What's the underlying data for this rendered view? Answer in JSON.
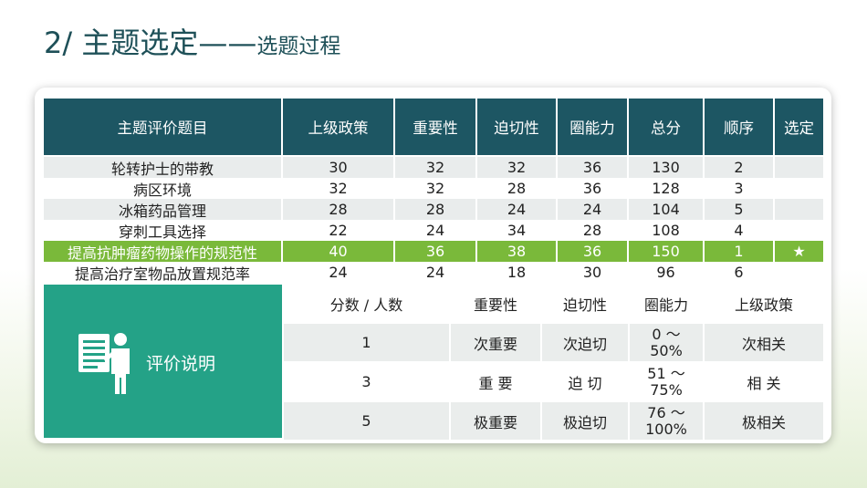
{
  "title": {
    "main": "2/ 主题选定——",
    "sub": "选题过程"
  },
  "score_table": {
    "headers": [
      "主题评价题目",
      "上级政策",
      "重要性",
      "迫切性",
      "圈能力",
      "总分",
      "顺序",
      "选定"
    ],
    "rows": [
      [
        "轮转护士的带教",
        "30",
        "32",
        "32",
        "36",
        "130",
        "2",
        ""
      ],
      [
        "病区环境",
        "32",
        "32",
        "28",
        "36",
        "128",
        "3",
        ""
      ],
      [
        "冰箱药品管理",
        "28",
        "28",
        "24",
        "24",
        "104",
        "5",
        ""
      ],
      [
        "穿刺工具选择",
        "22",
        "24",
        "34",
        "28",
        "108",
        "4",
        ""
      ],
      [
        "提高抗肿瘤药物操作的规范性",
        "40",
        "36",
        "38",
        "36",
        "150",
        "1",
        "★"
      ],
      [
        "提高治疗室物品放置规范率",
        "24",
        "24",
        "18",
        "30",
        "96",
        "6",
        ""
      ]
    ],
    "highlight_color": "#7ab93a",
    "header_color": "#1d5663"
  },
  "criteria": {
    "label": "评价说明",
    "panel_color": "#24a287",
    "panel_icon": "document-presenter-icon",
    "headers": [
      "分数 / 人数",
      "重要性",
      "迫切性",
      "圈能力",
      "上级政策"
    ],
    "rows": [
      [
        "1",
        "次重要",
        "次迫切",
        "0 ～ 50%",
        "次相关"
      ],
      [
        "3",
        "重 要",
        "迫 切",
        "51 ～ 75%",
        "相 关"
      ],
      [
        "5",
        "极重要",
        "极迫切",
        "76 ～ 100%",
        "极相关"
      ]
    ]
  }
}
